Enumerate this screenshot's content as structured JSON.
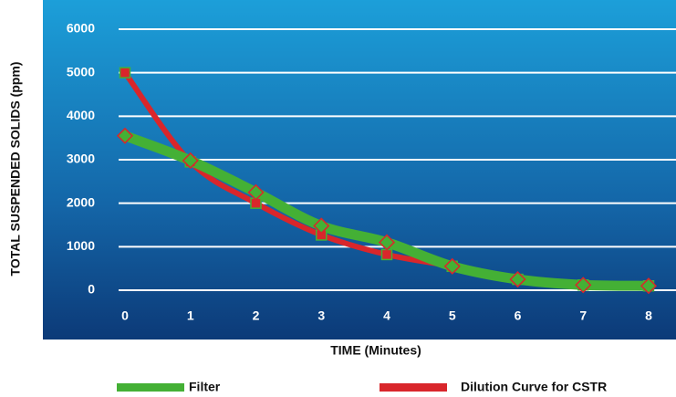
{
  "chart_data": {
    "type": "line",
    "x_label": "TIME (Minutes)",
    "y_label": "TOTAL SUSPENDED SOLIDS (ppm)",
    "x": [
      0,
      1,
      2,
      3,
      4,
      5,
      6,
      7,
      8
    ],
    "series": [
      {
        "name": "Filter",
        "color": "#44b035",
        "marker_color": "#d9262b",
        "values": [
          3550,
          2980,
          2250,
          1480,
          1100,
          550,
          250,
          120,
          100
        ]
      },
      {
        "name": "Dilution Curve for CSTR",
        "color": "#d9262b",
        "marker_color": "#44b035",
        "values": [
          5000,
          2950,
          2000,
          1270,
          820,
          550,
          250,
          120,
          100
        ]
      }
    ],
    "xlim": [
      0,
      8
    ],
    "xticks": [
      0,
      1,
      2,
      3,
      4,
      5,
      6,
      7,
      8
    ],
    "ylim": [
      0,
      6000
    ],
    "yticks": [
      0,
      1000,
      2000,
      3000,
      4000,
      5000,
      6000
    ],
    "grid": true
  }
}
